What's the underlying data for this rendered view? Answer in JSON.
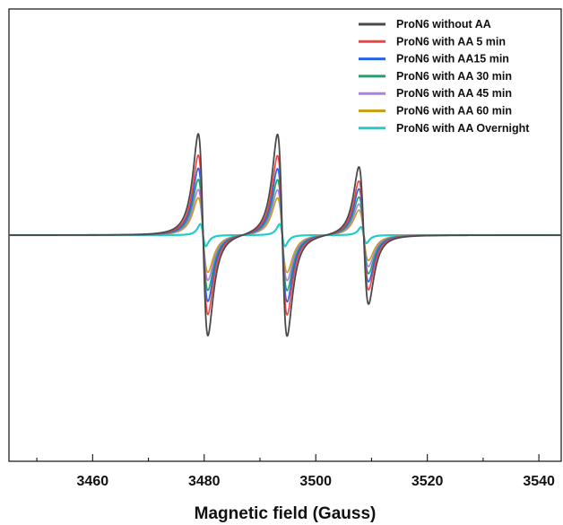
{
  "chart_data": {
    "type": "line",
    "title": "",
    "xlabel": "Magnetic field (Gauss)",
    "ylabel": "",
    "xlim": [
      3445,
      3544
    ],
    "ylim": [
      -1.12,
      1.12
    ],
    "x_ticks": [
      3460,
      3480,
      3500,
      3520,
      3540
    ],
    "x_tick_labels": [
      "3460",
      "3480",
      "3500",
      "3520",
      "3540"
    ],
    "y_ticks_shown": false,
    "grid": false,
    "legend_position": "top-right",
    "line_centers": [
      3479.8,
      3494.0,
      3508.6
    ],
    "series": [
      {
        "name": "ProN6 without AA",
        "color": "#4a4a4a",
        "peak_amplitudes": [
          1.0,
          1.0,
          0.68
        ],
        "linewidth": 1.8
      },
      {
        "name": "ProN6 with AA 5 min",
        "color": "#ef4444",
        "peak_amplitudes": [
          0.79,
          0.79,
          0.54
        ],
        "linewidth": 1.6
      },
      {
        "name": "ProN6 with AA15 min",
        "color": "#2563eb",
        "peak_amplitudes": [
          0.66,
          0.66,
          0.46
        ],
        "linewidth": 1.6
      },
      {
        "name": "ProN6 with AA 30 min",
        "color": "#22a06b",
        "peak_amplitudes": [
          0.55,
          0.55,
          0.38
        ],
        "linewidth": 1.6
      },
      {
        "name": "ProN6 with AA 45 min",
        "color": "#b07ee0",
        "peak_amplitudes": [
          0.45,
          0.45,
          0.31
        ],
        "linewidth": 1.6
      },
      {
        "name": "ProN6 with AA 60 min",
        "color": "#c8a01a",
        "peak_amplitudes": [
          0.37,
          0.37,
          0.25
        ],
        "linewidth": 1.6
      },
      {
        "name": "ProN6 with AA Overnight",
        "color": "#22cccc",
        "peak_amplitudes": [
          0.11,
          0.11,
          0.08
        ],
        "linewidth": 2.2,
        "linewidth_scale": 0.55
      }
    ]
  }
}
